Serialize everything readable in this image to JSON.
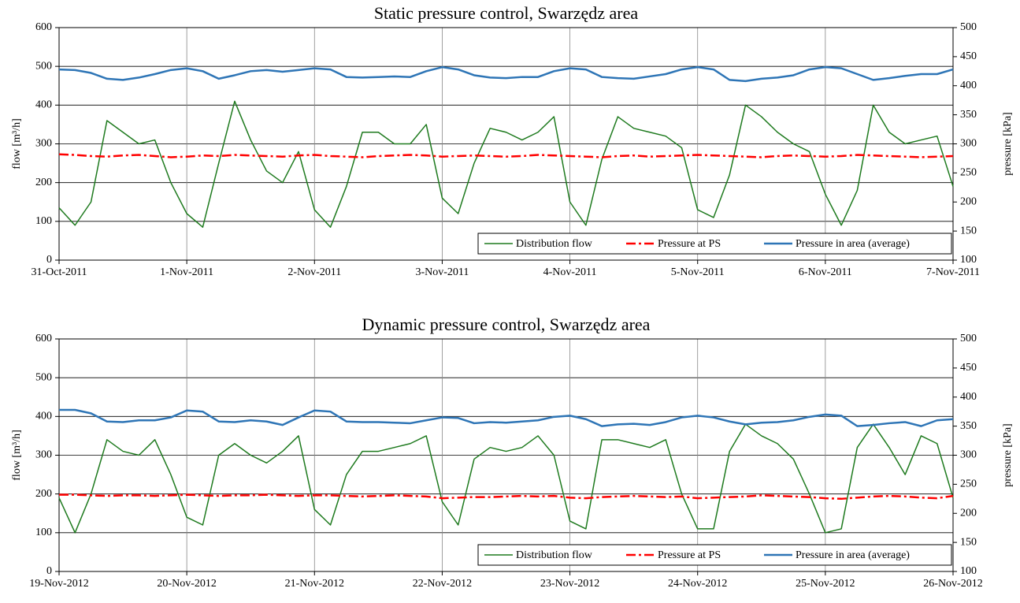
{
  "chart_data": [
    {
      "type": "line",
      "title": "Static pressure control, Swarzędz area",
      "ylabel": "flow [m³/h]",
      "y2label": "pressure [kPa]",
      "x": [
        0,
        0.125,
        0.25,
        0.375,
        0.5,
        0.625,
        0.75,
        0.875,
        1,
        1.125,
        1.25,
        1.375,
        1.5,
        1.625,
        1.75,
        1.875,
        2,
        2.125,
        2.25,
        2.375,
        2.5,
        2.625,
        2.75,
        2.875,
        3,
        3.125,
        3.25,
        3.375,
        3.5,
        3.625,
        3.75,
        3.875,
        4,
        4.125,
        4.25,
        4.375,
        4.5,
        4.625,
        4.75,
        4.875,
        5,
        5.125,
        5.25,
        5.375,
        5.5,
        5.625,
        5.75,
        5.875,
        6,
        6.125,
        6.25,
        6.375,
        6.5,
        6.625,
        6.75,
        6.875,
        7
      ],
      "xlim": [
        0,
        7
      ],
      "xticks": [
        {
          "value": 0,
          "label": "31-Oct-2011"
        },
        {
          "value": 1,
          "label": "1-Nov-2011"
        },
        {
          "value": 2,
          "label": "2-Nov-2011"
        },
        {
          "value": 3,
          "label": "3-Nov-2011"
        },
        {
          "value": 4,
          "label": "4-Nov-2011"
        },
        {
          "value": 5,
          "label": "5-Nov-2011"
        },
        {
          "value": 6,
          "label": "6-Nov-2011"
        },
        {
          "value": 7,
          "label": "7-Nov-2011"
        }
      ],
      "ylim": [
        0,
        600
      ],
      "yticks": [
        0,
        100,
        200,
        300,
        400,
        500,
        600
      ],
      "y2lim": [
        100,
        500
      ],
      "y2ticks": [
        100,
        150,
        200,
        250,
        300,
        350,
        400,
        450,
        500
      ],
      "grid": true,
      "legend": "lower right",
      "series": [
        {
          "name": "Distribution flow",
          "color": "#1e7a1e",
          "style": "solid",
          "values": [
            135,
            90,
            150,
            360,
            330,
            300,
            310,
            200,
            120,
            85,
            250,
            410,
            310,
            230,
            200,
            280,
            130,
            85,
            190,
            330,
            330,
            300,
            300,
            350,
            160,
            120,
            250,
            340,
            330,
            310,
            330,
            370,
            150,
            90,
            260,
            370,
            340,
            330,
            320,
            290,
            130,
            110,
            220,
            400,
            370,
            330,
            300,
            280,
            170,
            90,
            180,
            400,
            330,
            300,
            310,
            320,
            190
          ]
        },
        {
          "name": "Pressure at PS",
          "color": "#ff0000",
          "style": "dashdot",
          "axis": "y2",
          "values": [
            282,
            281,
            279,
            278,
            280,
            281,
            279,
            277,
            278,
            280,
            279,
            281,
            280,
            279,
            278,
            280,
            281,
            279,
            278,
            277,
            279,
            280,
            281,
            280,
            278,
            279,
            280,
            279,
            278,
            279,
            281,
            280,
            279,
            278,
            277,
            279,
            280,
            278,
            279,
            280,
            281,
            280,
            279,
            278,
            277,
            279,
            280,
            279,
            278,
            279,
            281,
            280,
            279,
            278,
            277,
            278,
            279
          ]
        },
        {
          "name": "Pressure in area (average)",
          "color": "#2e75b6",
          "style": "solid",
          "axis": "y2",
          "values": [
            428,
            427,
            422,
            412,
            410,
            414,
            420,
            427,
            430,
            425,
            412,
            418,
            425,
            427,
            424,
            427,
            430,
            428,
            415,
            414,
            415,
            416,
            415,
            425,
            432,
            428,
            418,
            414,
            413,
            415,
            415,
            425,
            430,
            428,
            415,
            413,
            412,
            416,
            420,
            428,
            432,
            428,
            410,
            408,
            412,
            414,
            418,
            428,
            432,
            430,
            420,
            410,
            413,
            417,
            420,
            420,
            428
          ]
        }
      ]
    },
    {
      "type": "line",
      "title": "Dynamic pressure control, Swarzędz area",
      "ylabel": "flow [m³/h]",
      "y2label": "pressure [kPa]",
      "x": [
        0,
        0.125,
        0.25,
        0.375,
        0.5,
        0.625,
        0.75,
        0.875,
        1,
        1.125,
        1.25,
        1.375,
        1.5,
        1.625,
        1.75,
        1.875,
        2,
        2.125,
        2.25,
        2.375,
        2.5,
        2.625,
        2.75,
        2.875,
        3,
        3.125,
        3.25,
        3.375,
        3.5,
        3.625,
        3.75,
        3.875,
        4,
        4.125,
        4.25,
        4.375,
        4.5,
        4.625,
        4.75,
        4.875,
        5,
        5.125,
        5.25,
        5.375,
        5.5,
        5.625,
        5.75,
        5.875,
        6,
        6.125,
        6.25,
        6.375,
        6.5,
        6.625,
        6.75,
        6.875,
        7
      ],
      "xlim": [
        0,
        7
      ],
      "xticks": [
        {
          "value": 0,
          "label": "19-Nov-2012"
        },
        {
          "value": 1,
          "label": "20-Nov-2012"
        },
        {
          "value": 2,
          "label": "21-Nov-2012"
        },
        {
          "value": 3,
          "label": "22-Nov-2012"
        },
        {
          "value": 4,
          "label": "23-Nov-2012"
        },
        {
          "value": 5,
          "label": "24-Nov-2012"
        },
        {
          "value": 6,
          "label": "25-Nov-2012"
        },
        {
          "value": 7,
          "label": "26-Nov-2012"
        }
      ],
      "ylim": [
        0,
        600
      ],
      "yticks": [
        0,
        100,
        200,
        300,
        400,
        500,
        600
      ],
      "y2lim": [
        100,
        500
      ],
      "y2ticks": [
        100,
        150,
        200,
        250,
        300,
        350,
        400,
        450,
        500
      ],
      "grid": true,
      "legend": "lower right",
      "series": [
        {
          "name": "Distribution flow",
          "color": "#1e7a1e",
          "style": "solid",
          "values": [
            190,
            100,
            200,
            340,
            310,
            300,
            340,
            250,
            140,
            120,
            300,
            330,
            300,
            280,
            310,
            350,
            160,
            120,
            250,
            310,
            310,
            320,
            330,
            350,
            180,
            120,
            290,
            320,
            310,
            320,
            350,
            300,
            130,
            110,
            340,
            340,
            330,
            320,
            340,
            200,
            110,
            110,
            310,
            380,
            350,
            330,
            290,
            200,
            100,
            110,
            320,
            380,
            320,
            250,
            350,
            330,
            190
          ]
        },
        {
          "name": "Pressure at PS",
          "color": "#ff0000",
          "style": "dashdot",
          "axis": "y2",
          "values": [
            232,
            232,
            231,
            230,
            231,
            231,
            230,
            231,
            232,
            231,
            230,
            231,
            231,
            232,
            231,
            230,
            231,
            231,
            230,
            229,
            230,
            231,
            230,
            229,
            226,
            227,
            228,
            228,
            229,
            230,
            229,
            230,
            227,
            226,
            228,
            229,
            230,
            229,
            228,
            229,
            226,
            227,
            228,
            229,
            231,
            230,
            229,
            228,
            226,
            225,
            227,
            229,
            230,
            229,
            227,
            226,
            230
          ]
        },
        {
          "name": "Pressure in area (average)",
          "color": "#2e75b6",
          "style": "solid",
          "axis": "y2",
          "values": [
            378,
            378,
            372,
            358,
            357,
            360,
            360,
            365,
            377,
            375,
            358,
            357,
            360,
            358,
            352,
            365,
            377,
            375,
            358,
            357,
            357,
            356,
            355,
            360,
            365,
            364,
            355,
            357,
            356,
            358,
            360,
            366,
            368,
            362,
            350,
            353,
            354,
            352,
            357,
            365,
            368,
            365,
            358,
            353,
            356,
            357,
            360,
            366,
            370,
            368,
            350,
            352,
            355,
            357,
            350,
            360,
            362
          ]
        }
      ]
    }
  ]
}
